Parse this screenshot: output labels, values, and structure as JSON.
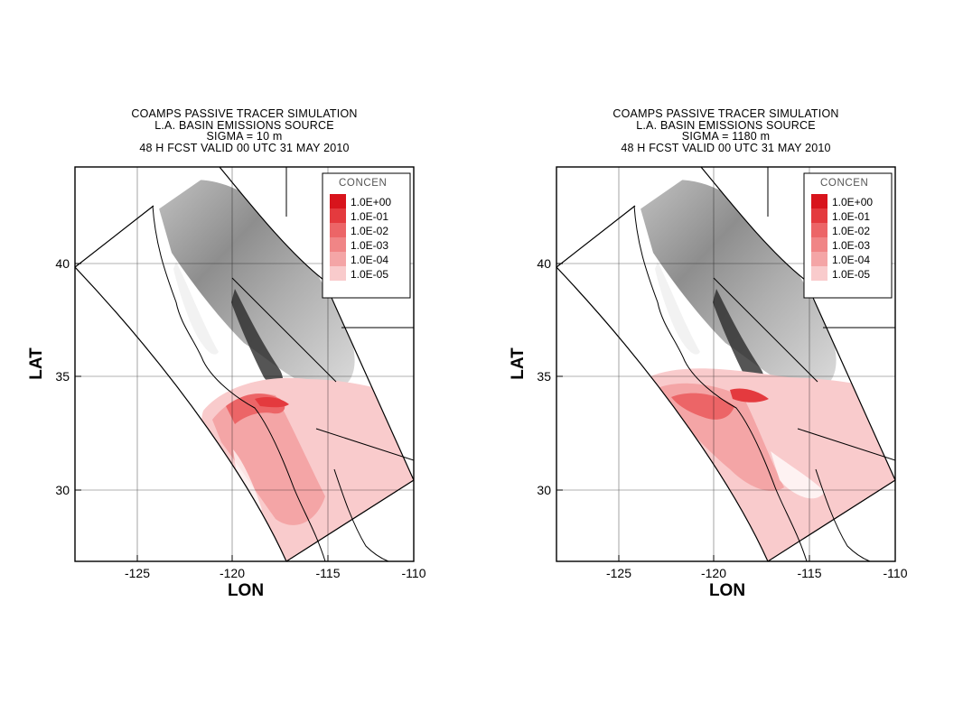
{
  "panels": [
    {
      "title_lines": [
        "COAMPS PASSIVE TRACER SIMULATION",
        "L.A. BASIN EMISSIONS SOURCE",
        "SIGMA = 10 m",
        "48 H FCST VALID 00 UTC 31 MAY 2010"
      ],
      "xlabel": "LON",
      "ylabel": "LAT",
      "x_ticks": [
        "-125",
        "-120",
        "-115",
        "-110"
      ],
      "y_ticks": [
        "30",
        "35",
        "40"
      ],
      "legend": {
        "title": "CONCEN",
        "levels": [
          "1.0E+00",
          "1.0E-01",
          "1.0E-02",
          "1.0E-03",
          "1.0E-04",
          "1.0E-05"
        ],
        "colors": [
          "#d8141c",
          "#e43a3e",
          "#ec6567",
          "#f08586",
          "#f4a5a6",
          "#f9cbcc"
        ]
      },
      "plume_level": "near-surface"
    },
    {
      "title_lines": [
        "COAMPS PASSIVE TRACER SIMULATION",
        "L.A. BASIN EMISSIONS SOURCE",
        "SIGMA = 1180 m",
        "48 H FCST VALID 00 UTC 31 MAY 2010"
      ],
      "xlabel": "LON",
      "ylabel": "LAT",
      "x_ticks": [
        "-125",
        "-120",
        "-115",
        "-110"
      ],
      "y_ticks": [
        "30",
        "35",
        "40"
      ],
      "legend": {
        "title": "CONCEN",
        "levels": [
          "1.0E+00",
          "1.0E-01",
          "1.0E-02",
          "1.0E-03",
          "1.0E-04",
          "1.0E-05"
        ],
        "colors": [
          "#d8141c",
          "#e43a3e",
          "#ec6567",
          "#f08586",
          "#f4a5a6",
          "#f9cbcc"
        ]
      },
      "plume_level": "elevated"
    }
  ]
}
